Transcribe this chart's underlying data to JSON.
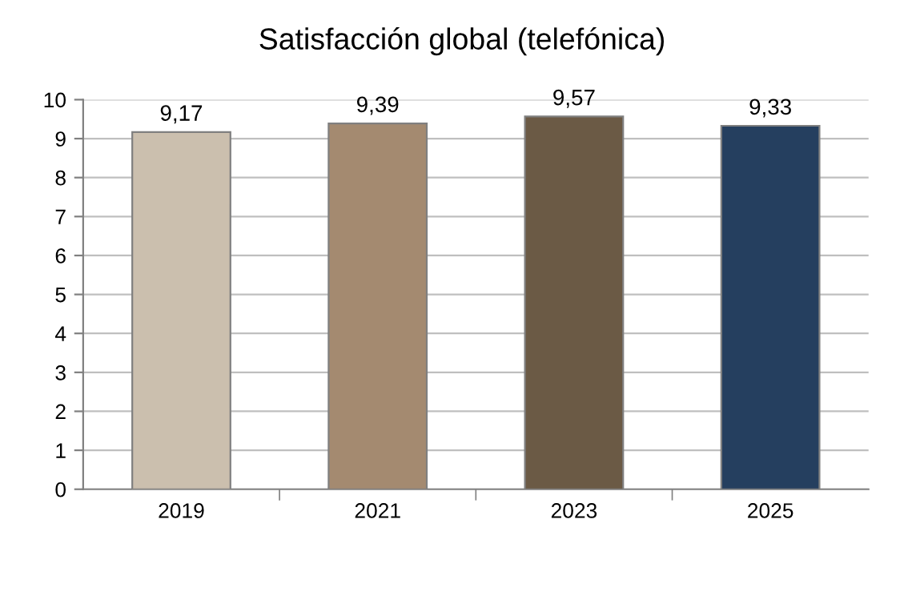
{
  "chart_data": {
    "type": "bar",
    "title": "Satisfacción global (telefónica)",
    "categories": [
      "2019",
      "2021",
      "2023",
      "2025"
    ],
    "values": [
      9.17,
      9.39,
      9.57,
      9.33
    ],
    "value_labels": [
      "9,17",
      "9,39",
      "9,57",
      "9,33"
    ],
    "colors": [
      "#cbbfae",
      "#a48a70",
      "#6b5a45",
      "#253f5f"
    ],
    "ylim": [
      0,
      10
    ],
    "yticks": [
      0,
      1,
      2,
      3,
      4,
      5,
      6,
      7,
      8,
      9,
      10
    ],
    "grid": "y",
    "legend": false
  }
}
